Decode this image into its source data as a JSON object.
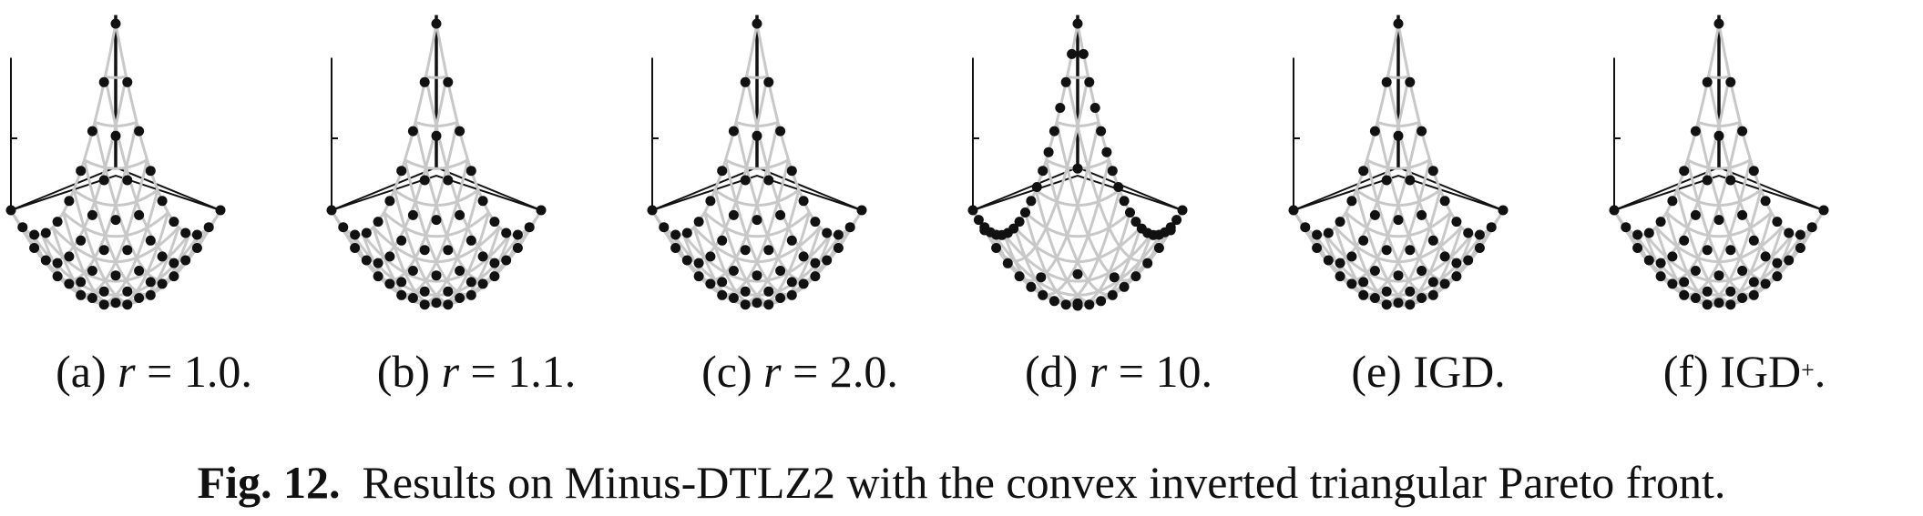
{
  "colors": {
    "grid": "#c8c8c8",
    "axis": "#111111",
    "point": "#111111"
  },
  "subfigures": [
    {
      "label": "(a)",
      "var": "r",
      "eq": "= 1.0.",
      "rest": "",
      "sup": "",
      "after": ""
    },
    {
      "label": "(b)",
      "var": "r",
      "eq": "= 1.1.",
      "rest": "",
      "sup": "",
      "after": ""
    },
    {
      "label": "(c)",
      "var": "r",
      "eq": "= 2.0.",
      "rest": "",
      "sup": "",
      "after": ""
    },
    {
      "label": "(d)",
      "var": "r",
      "eq": "= 10.",
      "rest": "",
      "sup": "",
      "after": ""
    },
    {
      "label": "(e)",
      "var": "",
      "eq": "",
      "rest": "IGD.",
      "sup": "",
      "after": ""
    },
    {
      "label": "(f)",
      "var": "",
      "eq": "",
      "rest": "IGD",
      "sup": "+",
      "after": "."
    }
  ],
  "caption": {
    "number": "Fig. 12.",
    "text": "Results on Minus-DTLZ2 with the convex inverted triangular Pareto front."
  },
  "chart_data": [
    {
      "type": "scatter3d",
      "title": "(a) r = 1.0.",
      "surface": "convex inverted triangular Pareto front",
      "distribution": "uniform",
      "points_approx": 55
    },
    {
      "type": "scatter3d",
      "title": "(b) r = 1.1.",
      "surface": "convex inverted triangular Pareto front",
      "distribution": "uniform",
      "points_approx": 55
    },
    {
      "type": "scatter3d",
      "title": "(c) r = 2.0.",
      "surface": "convex inverted triangular Pareto front",
      "distribution": "uniform",
      "points_approx": 55
    },
    {
      "type": "scatter3d",
      "title": "(d) r = 10.",
      "surface": "convex inverted triangular Pareto front",
      "distribution": "boundary",
      "points_approx": 60
    },
    {
      "type": "scatter3d",
      "title": "(e) IGD.",
      "surface": "convex inverted triangular Pareto front",
      "distribution": "uniform",
      "points_approx": 55
    },
    {
      "type": "scatter3d",
      "title": "(f) IGD+.",
      "surface": "convex inverted triangular Pareto front",
      "distribution": "uniform",
      "points_approx": 55
    }
  ]
}
